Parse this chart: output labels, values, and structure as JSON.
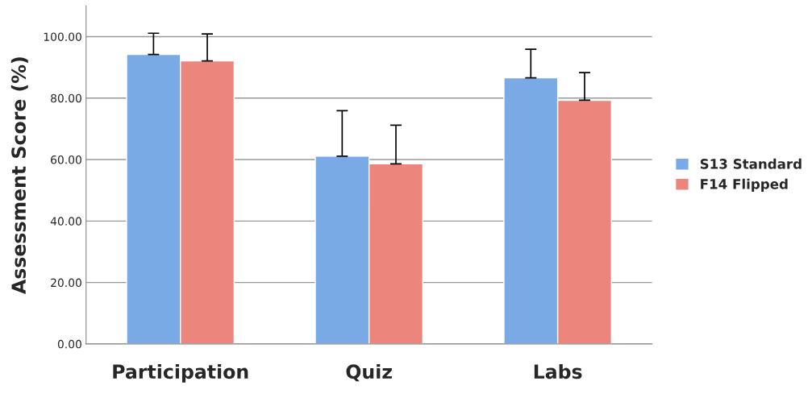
{
  "chart_data": {
    "type": "bar",
    "ylabel": "Assessment Score (%)",
    "categories": [
      "Participation",
      "Quiz",
      "Labs"
    ],
    "series": [
      {
        "name": "S13 Standard",
        "color": "#7aaae6",
        "values": [
          94.2,
          61.1,
          86.6
        ],
        "errors": [
          [
            94.2,
            101.1
          ],
          [
            61.1,
            75.9
          ],
          [
            86.6,
            95.9
          ]
        ]
      },
      {
        "name": "F14 Flipped",
        "color": "#ec857c",
        "values": [
          92.1,
          58.6,
          79.3
        ],
        "errors": [
          [
            92.1,
            100.9
          ],
          [
            58.6,
            71.2
          ],
          [
            79.3,
            88.3
          ]
        ]
      }
    ],
    "ylim": [
      0,
      110
    ],
    "yticks": [
      {
        "value": 0,
        "label": "0.00"
      },
      {
        "value": 20,
        "label": "20.00"
      },
      {
        "value": 40,
        "label": "40.00"
      },
      {
        "value": 60,
        "label": "60.00"
      },
      {
        "value": 80,
        "label": "80.00"
      },
      {
        "value": 100,
        "label": "100.00"
      }
    ],
    "grid": "y",
    "legend": "right"
  }
}
